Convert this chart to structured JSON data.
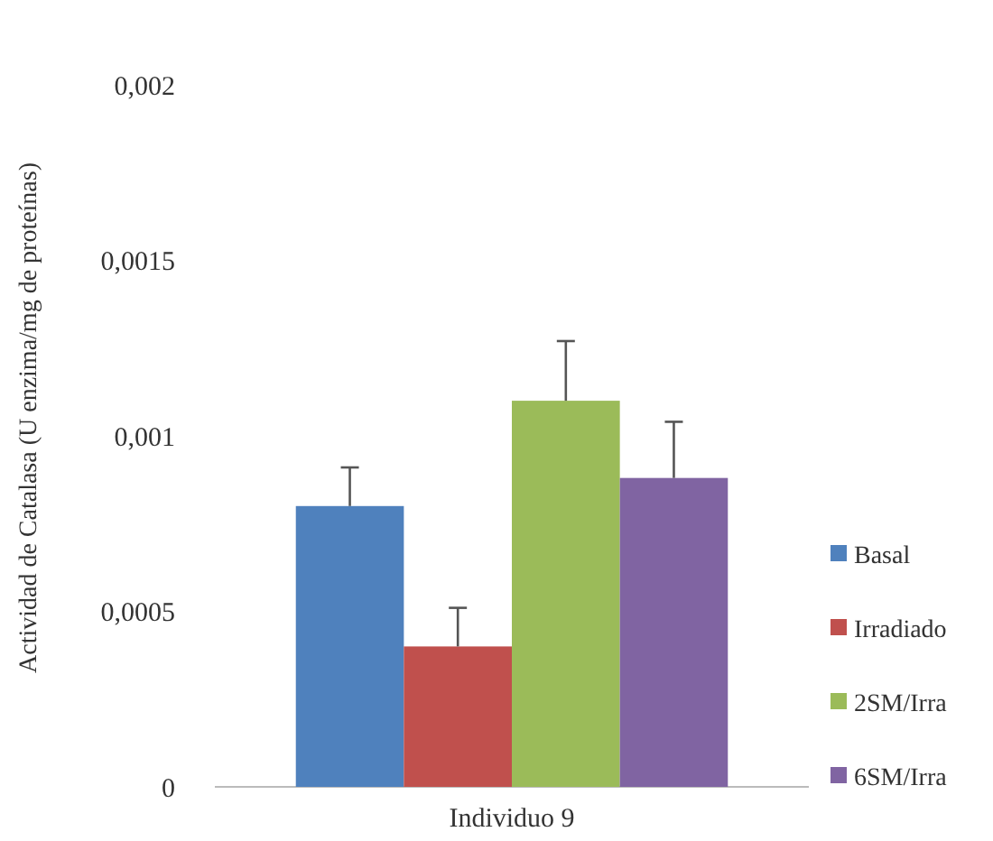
{
  "chart_data": {
    "type": "bar",
    "ylabel": "Actividad de Catalasa (U enzima/mg de proteínas)",
    "categories": [
      "Individuo 9"
    ],
    "series": [
      {
        "name": "Basal",
        "color": "#4f81bd",
        "values": [
          0.0008
        ],
        "errors": [
          [
            0.0008,
            0.00091
          ]
        ]
      },
      {
        "name": "Irradiado",
        "color": "#c0504d",
        "values": [
          0.0004
        ],
        "errors": [
          [
            0.0004,
            0.00051
          ]
        ]
      },
      {
        "name": "2SM/Irra",
        "color": "#9bbb59",
        "values": [
          0.0011
        ],
        "errors": [
          [
            0.0011,
            0.00127
          ]
        ]
      },
      {
        "name": "6SM/Irra",
        "color": "#8064a2",
        "values": [
          0.00088
        ],
        "errors": [
          [
            0.00088,
            0.00104
          ]
        ]
      }
    ],
    "ylim": [
      0,
      0.002
    ],
    "yticks": [
      {
        "value": 0,
        "label": "0"
      },
      {
        "value": 0.0005,
        "label": "0,0005"
      },
      {
        "value": 0.001,
        "label": "0,001"
      },
      {
        "value": 0.0015,
        "label": "0,0015"
      },
      {
        "value": 0.002,
        "label": "0,002"
      }
    ],
    "grid": false,
    "legend": "right"
  }
}
